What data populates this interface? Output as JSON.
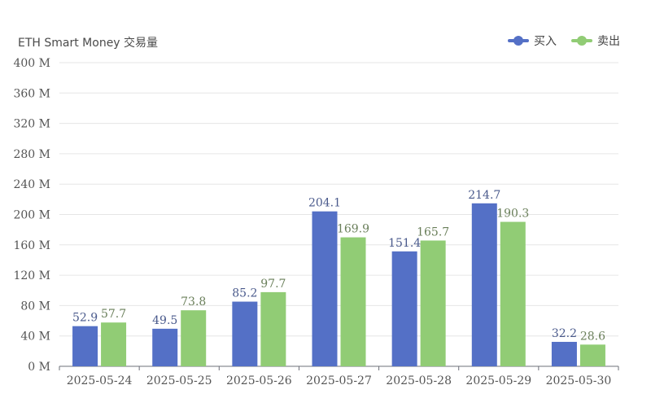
{
  "chart_data": {
    "type": "bar",
    "title": "ETH Smart Money 交易量",
    "categories": [
      "2025-05-24",
      "2025-05-25",
      "2025-05-26",
      "2025-05-27",
      "2025-05-28",
      "2025-05-29",
      "2025-05-30"
    ],
    "series": [
      {
        "name": "买入",
        "color": "#5470c6",
        "values": [
          52.9,
          49.5,
          85.2,
          204.1,
          151.4,
          214.7,
          32.2
        ]
      },
      {
        "name": "卖出",
        "color": "#91cc75",
        "values": [
          57.7,
          73.8,
          97.7,
          169.9,
          165.7,
          190.3,
          28.6
        ]
      }
    ],
    "y_ticks": [
      "0 M",
      "40 M",
      "80 M",
      "120 M",
      "160 M",
      "200 M",
      "240 M",
      "280 M",
      "320 M",
      "360 M",
      "400 M"
    ],
    "ylim": [
      0,
      400
    ],
    "xlabel": "",
    "ylabel": "",
    "grid": true,
    "legend_position": "top-right"
  }
}
